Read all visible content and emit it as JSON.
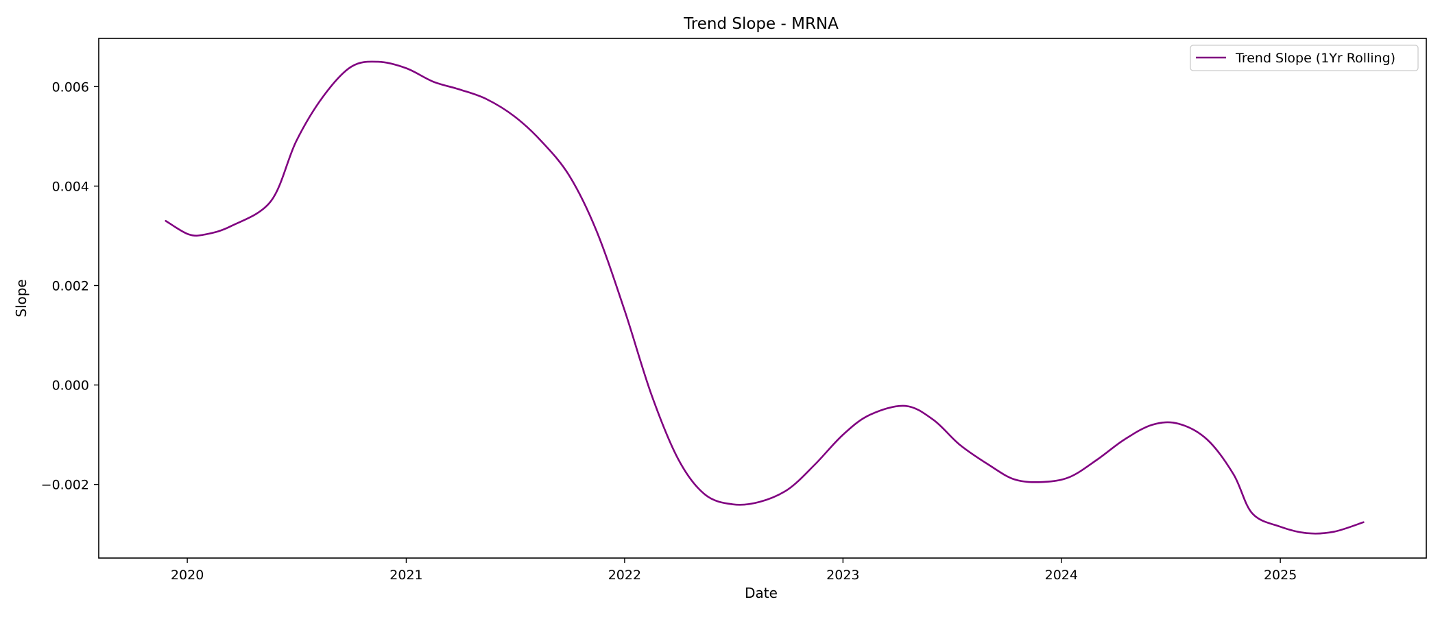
{
  "chart_data": {
    "type": "line",
    "title": "Trend Slope - MRNA",
    "xlabel": "Date",
    "ylabel": "Slope",
    "x_axis": {
      "type": "date",
      "range": [
        "2019-08-06",
        "2025-09-02"
      ],
      "ticks": [
        "2020-01-01",
        "2021-01-01",
        "2022-01-01",
        "2023-01-01",
        "2024-01-01",
        "2025-01-01"
      ],
      "tick_labels": [
        "2020",
        "2021",
        "2022",
        "2023",
        "2024",
        "2025"
      ]
    },
    "y_axis": {
      "range": [
        -0.00348,
        0.00697
      ],
      "ticks": [
        -0.002,
        0.0,
        0.002,
        0.004,
        0.006
      ],
      "tick_labels": [
        "−0.002",
        "0.000",
        "0.002",
        "0.004",
        "0.006"
      ]
    },
    "grid": false,
    "legend": {
      "placement": "top-right"
    },
    "series": [
      {
        "name": "Trend Slope (1Yr Rolling)",
        "color": "#800080",
        "points": [
          [
            "2019-11-26",
            0.0033
          ],
          [
            "2020-01-03",
            0.00303
          ],
          [
            "2020-02-01",
            0.00303
          ],
          [
            "2020-03-15",
            0.0032
          ],
          [
            "2020-05-20",
            0.0037
          ],
          [
            "2020-07-01",
            0.0049
          ],
          [
            "2020-08-15",
            0.0058
          ],
          [
            "2020-10-01",
            0.0064
          ],
          [
            "2020-11-15",
            0.0065
          ],
          [
            "2021-01-01",
            0.00637
          ],
          [
            "2021-02-15",
            0.0061
          ],
          [
            "2021-04-01",
            0.00594
          ],
          [
            "2021-05-15",
            0.00575
          ],
          [
            "2021-07-01",
            0.0054
          ],
          [
            "2021-08-15",
            0.0049
          ],
          [
            "2021-10-01",
            0.0042
          ],
          [
            "2021-11-15",
            0.0031
          ],
          [
            "2022-01-01",
            0.0015
          ],
          [
            "2022-02-15",
            -0.0002
          ],
          [
            "2022-04-01",
            -0.0015
          ],
          [
            "2022-05-15",
            -0.0022
          ],
          [
            "2022-07-01",
            -0.0024
          ],
          [
            "2022-08-15",
            -0.00235
          ],
          [
            "2022-10-01",
            -0.0021
          ],
          [
            "2022-11-15",
            -0.0016
          ],
          [
            "2023-01-01",
            -0.001
          ],
          [
            "2023-02-15",
            -0.0006
          ],
          [
            "2023-04-15",
            -0.00042
          ],
          [
            "2023-06-01",
            -0.0007
          ],
          [
            "2023-07-15",
            -0.0012
          ],
          [
            "2023-09-01",
            -0.0016
          ],
          [
            "2023-10-15",
            -0.0019
          ],
          [
            "2023-12-01",
            -0.00195
          ],
          [
            "2024-01-15",
            -0.00185
          ],
          [
            "2024-03-01",
            -0.0015
          ],
          [
            "2024-04-15",
            -0.0011
          ],
          [
            "2024-06-01",
            -0.0008
          ],
          [
            "2024-07-15",
            -0.00078
          ],
          [
            "2024-09-01",
            -0.0011
          ],
          [
            "2024-10-15",
            -0.0018
          ],
          [
            "2024-11-15",
            -0.00258
          ],
          [
            "2025-01-01",
            -0.00285
          ],
          [
            "2025-02-15",
            -0.00298
          ],
          [
            "2025-04-01",
            -0.00295
          ],
          [
            "2025-05-20",
            -0.00276
          ]
        ]
      }
    ]
  }
}
